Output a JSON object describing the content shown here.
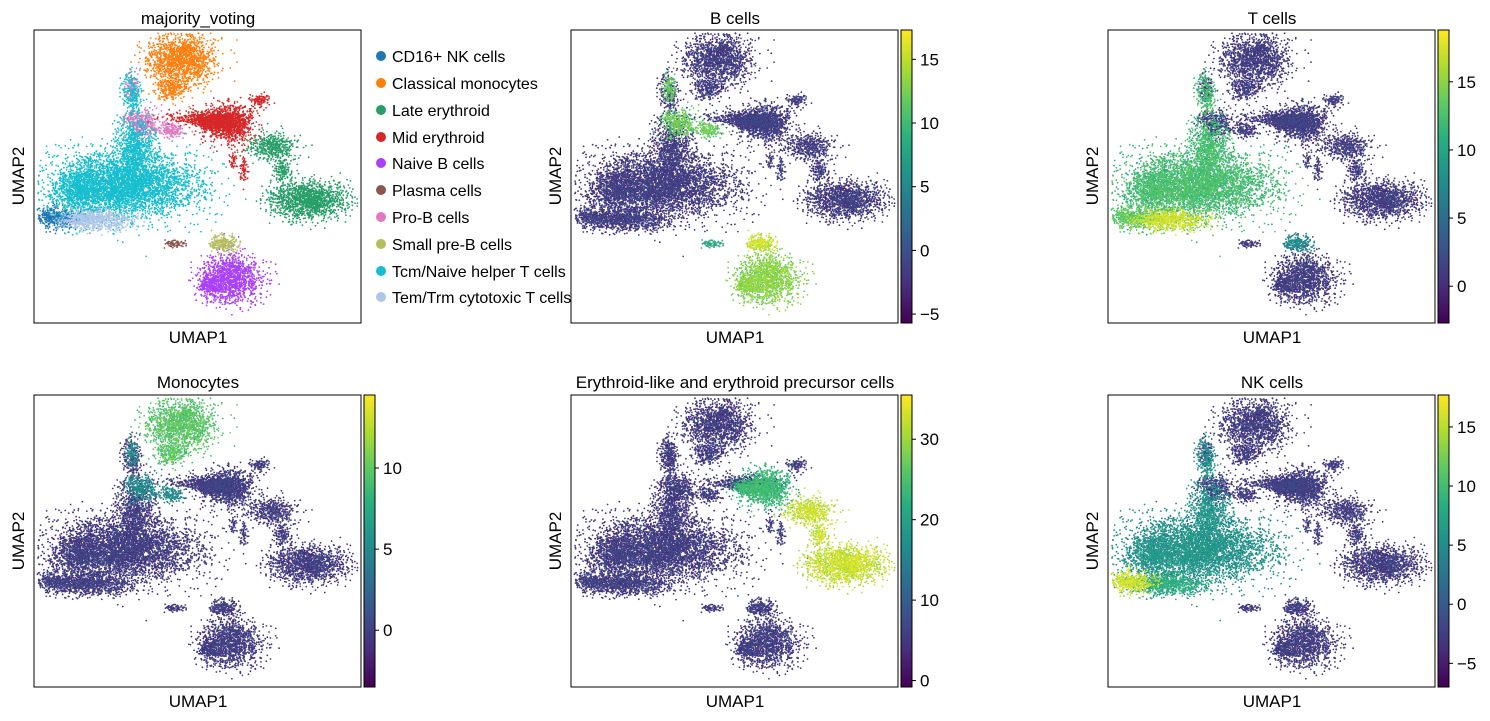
{
  "chart_data": [
    {
      "type": "scatter",
      "title": "majority_voting",
      "xlabel": "UMAP1",
      "ylabel": "UMAP2",
      "coloring": "categorical",
      "legend_placement": "right, outside",
      "grid": false,
      "legend": [
        {
          "label": "CD16+ NK cells",
          "color": "#1f77b4"
        },
        {
          "label": "Classical monocytes",
          "color": "#ff7f0e"
        },
        {
          "label": "Late erythroid",
          "color": "#279e68"
        },
        {
          "label": "Mid erythroid",
          "color": "#d62728"
        },
        {
          "label": "Naive B cells",
          "color": "#aa40fc"
        },
        {
          "label": "Plasma cells",
          "color": "#8c564b"
        },
        {
          "label": "Pro-B cells",
          "color": "#e377c2"
        },
        {
          "label": "Small pre-B cells",
          "color": "#b5bd61"
        },
        {
          "label": "Tcm/Naive helper T cells",
          "color": "#17becf"
        },
        {
          "label": "Tem/Trm cytotoxic T cells",
          "color": "#aec7e8"
        }
      ]
    },
    {
      "type": "scatter",
      "title": "B cells",
      "xlabel": "UMAP1",
      "ylabel": "UMAP2",
      "coloring": "continuous",
      "colormap": "viridis",
      "colorbar": {
        "min": -5.7,
        "max": 17.3,
        "ticks": [
          -5,
          0,
          5,
          10,
          15
        ]
      },
      "highlights": {
        "Naive B cells": 0.8,
        "Small pre-B cells": 0.9,
        "Pro-B cells": 0.75,
        "Plasma cells": 0.6
      }
    },
    {
      "type": "scatter",
      "title": "T cells",
      "xlabel": "UMAP1",
      "ylabel": "UMAP2",
      "coloring": "continuous",
      "colormap": "viridis",
      "colorbar": {
        "min": -2.7,
        "max": 18.8,
        "ticks": [
          0,
          5,
          10,
          15
        ]
      },
      "highlights": {
        "Tcm/Naive helper T cells": 0.68,
        "Tem/Trm cytotoxic T cells": 0.9,
        "CD16+ NK cells": 0.72,
        "Small pre-B cells": 0.45
      }
    },
    {
      "type": "scatter",
      "title": "Monocytes",
      "xlabel": "UMAP1",
      "ylabel": "UMAP2",
      "coloring": "continuous",
      "colormap": "viridis",
      "colorbar": {
        "min": -3.5,
        "max": 14.5,
        "ticks": [
          0,
          5,
          10
        ]
      },
      "highlights": {
        "Classical monocytes": 0.72,
        "Pro-B cells": 0.45
      }
    },
    {
      "type": "scatter",
      "title": "Erythroid-like and erythroid precursor cells",
      "xlabel": "UMAP1",
      "ylabel": "UMAP2",
      "coloring": "continuous",
      "colormap": "viridis",
      "colorbar": {
        "min": -0.8,
        "max": 35.5,
        "ticks": [
          0,
          10,
          20,
          30
        ]
      },
      "highlights": {
        "Late erythroid": 0.9,
        "Mid erythroid": 0.65
      }
    },
    {
      "type": "scatter",
      "title": "NK cells",
      "xlabel": "UMAP1",
      "ylabel": "UMAP2",
      "coloring": "continuous",
      "colormap": "viridis",
      "colorbar": {
        "min": -7.0,
        "max": 17.7,
        "ticks": [
          -5,
          0,
          5,
          10,
          15
        ]
      },
      "highlights": {
        "CD16+ NK cells": 0.9,
        "Tem/Trm cytotoxic T cells": 0.6,
        "Tcm/Naive helper T cells": 0.5
      }
    }
  ]
}
